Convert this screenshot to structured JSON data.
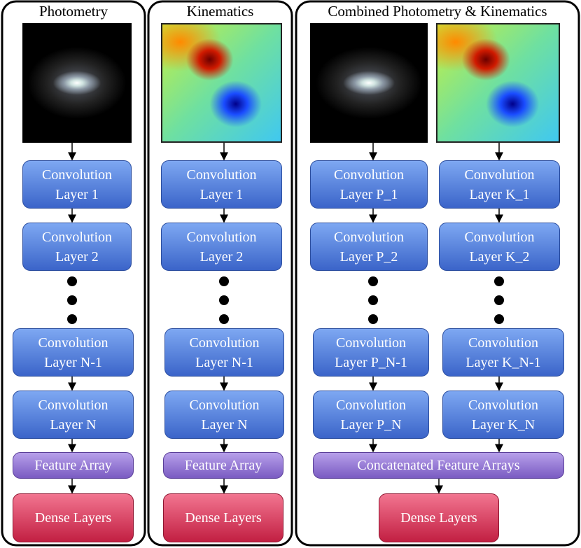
{
  "panels": [
    {
      "title": "Photometry",
      "layers": [
        [
          "Convolution",
          "Layer 1"
        ],
        [
          "Convolution",
          "Layer 2"
        ],
        [
          "Convolution",
          "Layer N-1"
        ],
        [
          "Convolution",
          "Layer N"
        ]
      ],
      "feature": "Feature Array",
      "dense": "Dense Layers"
    },
    {
      "title": "Kinematics",
      "layers": [
        [
          "Convolution",
          "Layer 1"
        ],
        [
          "Convolution",
          "Layer 2"
        ],
        [
          "Convolution",
          "Layer N-1"
        ],
        [
          "Convolution",
          "Layer N"
        ]
      ],
      "feature": "Feature Array",
      "dense": "Dense Layers"
    },
    {
      "title": "Combined Photometry & Kinematics",
      "columns": [
        [
          [
            "Convolution",
            "Layer P_1"
          ],
          [
            "Convolution",
            "Layer P_2"
          ],
          [
            "Convolution",
            "Layer P_N-1"
          ],
          [
            "Convolution",
            "Layer P_N"
          ]
        ],
        [
          [
            "Convolution",
            "Layer K_1"
          ],
          [
            "Convolution",
            "Layer K_2"
          ],
          [
            "Convolution",
            "Layer K_N-1"
          ],
          [
            "Convolution",
            "Layer K_N"
          ]
        ]
      ],
      "feature": "Concatenated Feature Arrays",
      "dense": "Dense Layers"
    }
  ]
}
